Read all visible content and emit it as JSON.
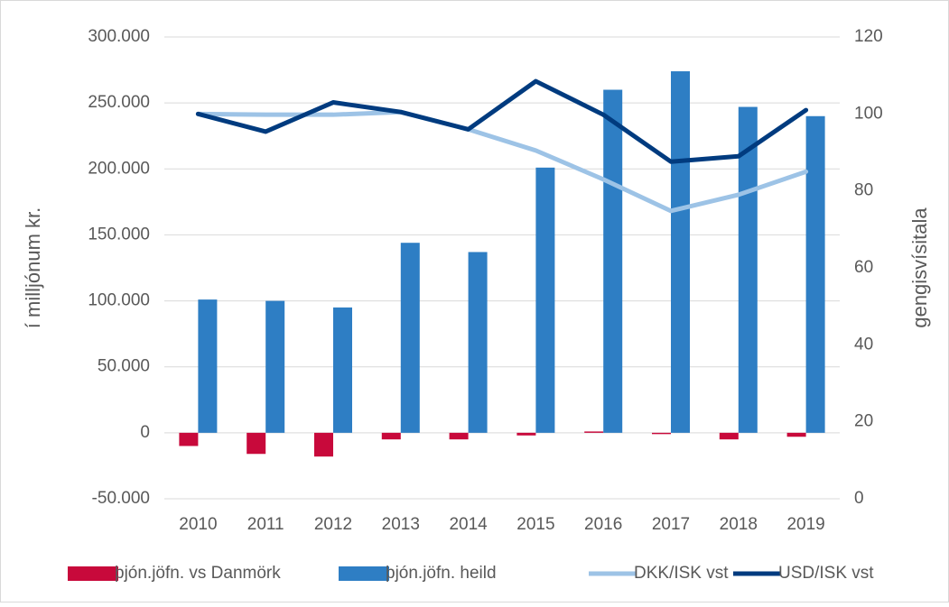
{
  "chart_data": {
    "type": "bar-line",
    "y_label": "í milljónum kr.",
    "y2_label": "gengisvísitala",
    "categories": [
      "2010",
      "2011",
      "2012",
      "2013",
      "2014",
      "2015",
      "2016",
      "2017",
      "2018",
      "2019"
    ],
    "series": [
      {
        "name": "þjón.jöfn. vs Danmörk",
        "type": "bar",
        "color": "#c8093b",
        "values": [
          -10000,
          -16000,
          -18000,
          -5000,
          -5000,
          -2000,
          1000,
          -1000,
          -5000,
          -3000
        ]
      },
      {
        "name": "þjón.jöfn. heild",
        "type": "bar",
        "color": "#2e7ec4",
        "values": [
          101000,
          100000,
          95000,
          144000,
          137000,
          201000,
          260000,
          274000,
          247000,
          240000
        ]
      },
      {
        "name": "DKK/ISK vst",
        "type": "line",
        "axis": "y2",
        "color": "#9dc3e6",
        "values": [
          100,
          99.8,
          99.8,
          100.5,
          96,
          90.5,
          83,
          74.8,
          79,
          85
        ]
      },
      {
        "name": "USD/ISK vst",
        "type": "line",
        "axis": "y2",
        "color": "#003b7f",
        "values": [
          100,
          95.4,
          103,
          100.5,
          96,
          108.5,
          99.8,
          87.6,
          89,
          101
        ]
      }
    ],
    "ylim": [
      -50000,
      300000
    ],
    "yticks": [
      {
        "value": -50000,
        "label": "-50.000"
      },
      0,
      {
        "value": 50000,
        "label": "50.000"
      },
      {
        "value": 100000,
        "label": "100.000"
      },
      {
        "value": 150000,
        "label": "150.000"
      },
      {
        "value": 200000,
        "label": "200.000"
      },
      {
        "value": 250000,
        "label": "250.000"
      },
      {
        "value": 300000,
        "label": "300.000"
      }
    ],
    "y2lim": [
      0,
      120
    ],
    "y2ticks": [
      0,
      20,
      40,
      60,
      80,
      100,
      120
    ],
    "grid": true,
    "legend": "bottom"
  }
}
